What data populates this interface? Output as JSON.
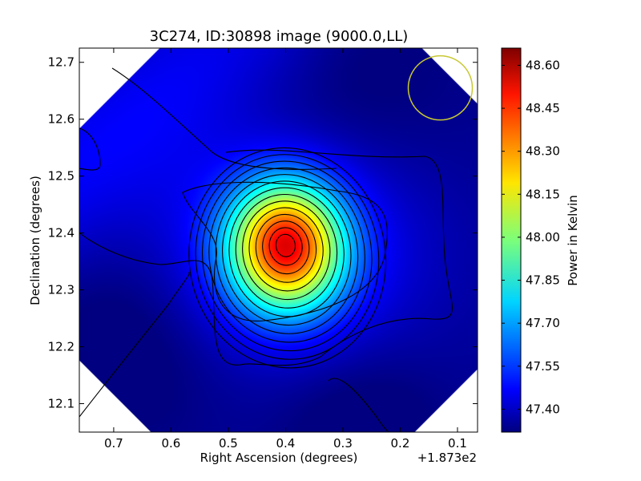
{
  "chart_data": {
    "type": "heatmap",
    "title": "3C274, ID:30898 image (9000.0,LL)",
    "xlabel": "Right Ascension (degrees)",
    "ylabel": "Declination (degrees)",
    "x_offset_label": "+1.873e2",
    "xlim": [
      0.76,
      0.065
    ],
    "ylim": [
      12.05,
      12.725
    ],
    "x_ticks": [
      0.7,
      0.6,
      0.5,
      0.4,
      0.3,
      0.2,
      0.1
    ],
    "x_tick_labels": [
      "0.7",
      "0.6",
      "0.5",
      "0.4",
      "0.3",
      "0.2",
      "0.1"
    ],
    "y_ticks": [
      12.1,
      12.2,
      12.3,
      12.4,
      12.5,
      12.6,
      12.7
    ],
    "y_tick_labels": [
      "12.1",
      "12.2",
      "12.3",
      "12.4",
      "12.5",
      "12.6",
      "12.7"
    ],
    "colormap": "jet",
    "colorbar": {
      "label": "Power in Kelvin",
      "range": [
        47.32,
        48.66
      ],
      "ticks": [
        47.4,
        47.55,
        47.7,
        47.85,
        48.0,
        48.15,
        48.3,
        48.45,
        48.6
      ],
      "tick_labels": [
        "47.40",
        "47.55",
        "47.70",
        "47.85",
        "48.00",
        "48.15",
        "48.30",
        "48.45",
        "48.60"
      ]
    },
    "peak": {
      "ra": 0.4,
      "dec": 12.378,
      "value": 48.63
    },
    "beam_circle": {
      "ra": 0.13,
      "dec": 12.655,
      "color": "#c8c832"
    }
  }
}
